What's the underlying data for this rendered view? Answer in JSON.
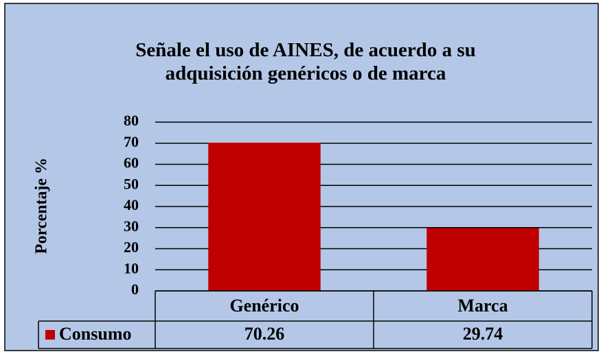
{
  "chart_data": {
    "type": "bar",
    "title": "Señale el uso de AINES, de acuerdo a su adquisición genéricos o de marca",
    "y_label": "Porcentaje %",
    "categories": [
      "Genérico",
      "Marca"
    ],
    "series": [
      {
        "name": "Consumo",
        "color": "#c00000",
        "values": [
          70.26,
          29.74
        ]
      }
    ],
    "ylim": [
      0,
      80
    ],
    "yticks": [
      0,
      10,
      20,
      30,
      40,
      50,
      60,
      70,
      80
    ],
    "grid": true,
    "data_table": true
  }
}
